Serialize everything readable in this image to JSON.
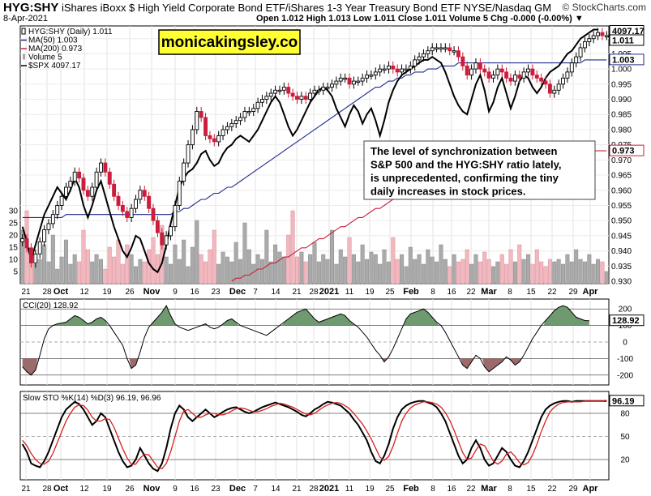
{
  "header": {
    "symbol": "HYG:SHY",
    "description": "iShares iBoxx $ High Yield Corporate Bond ETF/iShares 1-3 Year Treasury Bond ETF NYSE/Nasdaq GM",
    "date": "8-Apr-2021",
    "stats": "Open 1.012  High 1.013  Low 1.011  Close 1.011  Volume 5  Chg -0.000 (-0.00%) ▼",
    "brand": "© StockCharts.com",
    "watermark": "monicakingsley.co"
  },
  "annotation": "The level of synchronization between S&P 500 and the HYG:SHY ratio lately, is unprecedented, confirming the tiny daily increases in stock prices.",
  "colors": {
    "up": "#000000",
    "down": "#cc1d3c",
    "ma50": "#1e2a8a",
    "ma200": "#cc1d3c",
    "spx": "#000000",
    "volume_up": "#aaaaaa",
    "volume_down": "#f2b8bf",
    "cci_pos": "#6f9a6f",
    "cci_neg": "#9c6a6a",
    "sto_d": "#d42020"
  },
  "chart_data": [
    {
      "type": "candlestick",
      "legend": [
        {
          "label": "HYG:SHY (Daily) 1.011",
          "color": "#000000"
        },
        {
          "label": "MA(50) 1.003",
          "color": "#1e2a8a"
        },
        {
          "label": "MA(200) 0.973",
          "color": "#cc1d3c"
        },
        {
          "label": "Volume 5",
          "color": "#aaaaaa"
        },
        {
          "label": "$SPX 4097.17",
          "color": "#000000"
        }
      ],
      "ylim": [
        0.93,
        1.015
      ],
      "y_ticks": [
        "0.930",
        "0.935",
        "0.940",
        "0.945",
        "0.950",
        "0.955",
        "0.960",
        "0.965",
        "0.970",
        "0.975",
        "0.980",
        "0.985",
        "0.990",
        "0.995",
        "1.000",
        "1.005",
        "1.010"
      ],
      "volume_ticks": [
        "5",
        "10",
        "15",
        "20",
        "25",
        "30"
      ],
      "x_labels": [
        "21",
        "28",
        "Oct",
        "12",
        "19",
        "26",
        "Nov",
        "9",
        "16",
        "23",
        "Dec",
        "7",
        "14",
        "21",
        "28",
        "2021",
        "11",
        "19",
        "25",
        "Feb",
        "8",
        "16",
        "22",
        "Mar",
        "8",
        "15",
        "22",
        "29",
        "Apr"
      ],
      "last_labels": {
        "spx": "4097.17",
        "price": "1.011",
        "ma50": "1.003",
        "ma200": "0.973"
      },
      "price_close": [
        0.944,
        0.941,
        0.936,
        0.939,
        0.943,
        0.947,
        0.949,
        0.952,
        0.955,
        0.958,
        0.961,
        0.963,
        0.966,
        0.964,
        0.96,
        0.958,
        0.961,
        0.966,
        0.969,
        0.966,
        0.962,
        0.958,
        0.955,
        0.953,
        0.951,
        0.954,
        0.957,
        0.96,
        0.958,
        0.954,
        0.95,
        0.946,
        0.942,
        0.945,
        0.948,
        0.955,
        0.963,
        0.969,
        0.975,
        0.98,
        0.986,
        0.984,
        0.978,
        0.977,
        0.976,
        0.978,
        0.98,
        0.981,
        0.982,
        0.983,
        0.984,
        0.986,
        0.986,
        0.987,
        0.989,
        0.99,
        0.991,
        0.992,
        0.993,
        0.993,
        0.994,
        0.992,
        0.991,
        0.99,
        0.991,
        0.99,
        0.992,
        0.993,
        0.993,
        0.994,
        0.994,
        0.995,
        0.996,
        0.997,
        0.997,
        0.995,
        0.996,
        0.996,
        0.997,
        0.998,
        0.998,
        0.999,
        1.0,
        1.0,
        1.001,
        1.0,
        0.999,
        1.0,
        1.0,
        1.001,
        1.003,
        1.004,
        1.005,
        1.006,
        1.007,
        1.007,
        1.007,
        1.007,
        1.006,
        1.006,
        1.004,
        1.001,
        0.998,
        1.0,
        1.002,
        1.0,
        0.999,
        0.997,
        0.998,
        1.0,
        0.999,
        0.997,
        0.996,
        0.998,
        0.997,
        0.999,
        1.0,
        0.998,
        0.997,
        0.996,
        0.995,
        0.992,
        0.993,
        0.995,
        0.997,
        0.999,
        1.002,
        1.004,
        1.007,
        1.009,
        1.01,
        1.011,
        1.012,
        1.011,
        1.011
      ],
      "ma50": [
        0.951,
        0.951,
        0.951,
        0.951,
        0.951,
        0.951,
        0.951,
        0.951,
        0.951,
        0.951,
        0.952,
        0.952,
        0.952,
        0.952,
        0.952,
        0.952,
        0.952,
        0.952,
        0.952,
        0.952,
        0.952,
        0.952,
        0.952,
        0.952,
        0.952,
        0.952,
        0.952,
        0.952,
        0.952,
        0.952,
        0.952,
        0.952,
        0.952,
        0.952,
        0.952,
        0.953,
        0.953,
        0.954,
        0.954,
        0.955,
        0.956,
        0.957,
        0.957,
        0.958,
        0.959,
        0.959,
        0.96,
        0.961,
        0.961,
        0.962,
        0.963,
        0.964,
        0.965,
        0.966,
        0.967,
        0.968,
        0.969,
        0.97,
        0.971,
        0.972,
        0.973,
        0.974,
        0.975,
        0.976,
        0.977,
        0.978,
        0.979,
        0.98,
        0.981,
        0.982,
        0.983,
        0.984,
        0.985,
        0.986,
        0.987,
        0.988,
        0.989,
        0.99,
        0.991,
        0.992,
        0.993,
        0.994,
        0.994,
        0.995,
        0.996,
        0.996,
        0.997,
        0.997,
        0.998,
        0.998,
        0.999,
        0.999,
        0.999,
        1.0,
        1.0,
        1.0,
        1.001,
        1.001,
        1.001,
        1.001,
        1.002,
        1.002,
        1.002,
        1.002,
        1.002,
        1.002,
        1.002,
        1.002,
        1.002,
        1.002,
        1.002,
        1.002,
        1.002,
        1.002,
        1.002,
        1.002,
        1.002,
        1.002,
        1.002,
        1.002,
        1.002,
        1.002,
        1.002,
        1.002,
        1.002,
        1.002,
        1.002,
        1.002,
        1.002,
        1.003,
        1.003,
        1.003,
        1.003,
        1.003,
        1.003
      ],
      "ma200": [
        null,
        null,
        null,
        null,
        null,
        null,
        null,
        null,
        null,
        null,
        null,
        null,
        null,
        null,
        null,
        null,
        null,
        null,
        null,
        null,
        null,
        null,
        null,
        null,
        null,
        null,
        null,
        null,
        null,
        null,
        null,
        null,
        null,
        null,
        null,
        null,
        null,
        null,
        null,
        null,
        null,
        null,
        null,
        null,
        null,
        null,
        null,
        null,
        0.93,
        0.931,
        0.931,
        0.932,
        0.932,
        0.933,
        0.934,
        0.934,
        0.935,
        0.936,
        0.936,
        0.937,
        0.938,
        0.938,
        0.939,
        0.94,
        0.941,
        0.941,
        0.942,
        0.943,
        0.944,
        0.944,
        0.945,
        0.946,
        0.947,
        0.948,
        0.948,
        0.949,
        0.95,
        0.951,
        0.951,
        0.952,
        0.953,
        0.954,
        0.954,
        0.955,
        0.956,
        0.957,
        0.957,
        0.958,
        0.959,
        0.96,
        0.96,
        0.961,
        0.962,
        0.962,
        0.963,
        0.964,
        0.965,
        0.965,
        0.966,
        0.966,
        0.967,
        0.968,
        0.968,
        0.969,
        0.969,
        0.97,
        0.97,
        0.971,
        0.971,
        0.972,
        0.972,
        0.972,
        0.973,
        0.973,
        0.973,
        0.973,
        0.973,
        0.973,
        0.973,
        0.973,
        0.973,
        0.973,
        0.973,
        0.973,
        0.973,
        0.973,
        0.973,
        0.973,
        0.973,
        0.973,
        0.973,
        0.973,
        0.973,
        0.973,
        0.973
      ],
      "spx": [
        0.948,
        0.943,
        0.937,
        0.942,
        0.947,
        0.952,
        0.955,
        0.958,
        0.961,
        0.959,
        0.957,
        0.96,
        0.964,
        0.961,
        0.955,
        0.951,
        0.955,
        0.96,
        0.963,
        0.958,
        0.953,
        0.948,
        0.944,
        0.94,
        0.938,
        0.941,
        0.945,
        0.944,
        0.94,
        0.936,
        0.934,
        0.933,
        0.936,
        0.942,
        0.949,
        0.955,
        0.961,
        0.964,
        0.966,
        0.967,
        0.969,
        0.972,
        0.973,
        0.97,
        0.968,
        0.969,
        0.972,
        0.974,
        0.975,
        0.977,
        0.978,
        0.977,
        0.976,
        0.978,
        0.98,
        0.983,
        0.986,
        0.989,
        0.991,
        0.989,
        0.985,
        0.981,
        0.978,
        0.98,
        0.983,
        0.986,
        0.989,
        0.991,
        0.993,
        0.994,
        0.993,
        0.991,
        0.987,
        0.984,
        0.981,
        0.985,
        0.988,
        0.986,
        0.982,
        0.985,
        0.987,
        0.983,
        0.978,
        0.983,
        0.989,
        0.993,
        0.996,
        0.998,
        0.999,
        1.0,
        1.001,
        1.002,
        1.003,
        1.003,
        1.004,
        1.003,
        1.002,
        0.999,
        0.995,
        0.991,
        0.988,
        0.986,
        0.985,
        0.99,
        0.995,
        0.998,
        0.993,
        0.986,
        0.989,
        0.994,
        0.997,
        0.992,
        0.987,
        0.991,
        0.996,
        0.998,
        0.997,
        0.994,
        0.992,
        0.994,
        0.997,
        0.999,
        1.0,
        1.001,
        1.003,
        1.005,
        1.006,
        1.008,
        1.01,
        1.011,
        1.012,
        1.013,
        1.013
      ],
      "volume": [
        22,
        30,
        12,
        8,
        10,
        16,
        9,
        20,
        6,
        11,
        18,
        8,
        12,
        9,
        22,
        14,
        9,
        12,
        10,
        6,
        15,
        11,
        18,
        8,
        16,
        12,
        7,
        10,
        9,
        14,
        19,
        12,
        24,
        11,
        8,
        16,
        10,
        18,
        7,
        15,
        26,
        12,
        9,
        14,
        22,
        8,
        13,
        11,
        9,
        17,
        10,
        25,
        14,
        8,
        12,
        10,
        22,
        9,
        16,
        13,
        11,
        20,
        30,
        11,
        13,
        9,
        12,
        17,
        9,
        12,
        10,
        22,
        8,
        14,
        11,
        19,
        12,
        9,
        16,
        10,
        13,
        12,
        8,
        14,
        9,
        19,
        10,
        12,
        7,
        15,
        10,
        12,
        8,
        14,
        11,
        9,
        16,
        10,
        7,
        12,
        9,
        10,
        14,
        8,
        12,
        9,
        13,
        10,
        7,
        9,
        12,
        8,
        14,
        9,
        16,
        10,
        12,
        8,
        14,
        9,
        7,
        10,
        9,
        10,
        8,
        12,
        9,
        14,
        10,
        9,
        12,
        8,
        10,
        9,
        5
      ]
    },
    {
      "type": "line",
      "name": "CCI(20) 128.92",
      "ylim": [
        -260,
        260
      ],
      "y_ticks": [
        "200",
        "100",
        "0",
        "-100",
        "-200"
      ],
      "last_label": "128.92",
      "values": [
        -150,
        -180,
        -200,
        -170,
        -80,
        20,
        80,
        100,
        110,
        115,
        120,
        140,
        160,
        150,
        130,
        110,
        120,
        140,
        150,
        130,
        100,
        60,
        20,
        -20,
        -100,
        -160,
        -140,
        -60,
        30,
        90,
        120,
        150,
        180,
        220,
        160,
        110,
        90,
        80,
        70,
        80,
        90,
        100,
        110,
        90,
        80,
        90,
        110,
        130,
        140,
        120,
        100,
        90,
        80,
        70,
        60,
        50,
        40,
        60,
        80,
        100,
        120,
        140,
        160,
        180,
        190,
        200,
        170,
        140,
        120,
        130,
        140,
        150,
        160,
        170,
        160,
        130,
        110,
        90,
        60,
        30,
        -10,
        -50,
        -80,
        -120,
        -90,
        -40,
        20,
        80,
        140,
        170,
        180,
        190,
        200,
        180,
        150,
        120,
        100,
        60,
        10,
        -40,
        -90,
        -140,
        -160,
        -120,
        -80,
        -100,
        -150,
        -180,
        -160,
        -140,
        -120,
        -90,
        -110,
        -140,
        -120,
        -80,
        -30,
        20,
        60,
        100,
        130,
        160,
        190,
        210,
        220,
        210,
        180,
        150,
        140,
        130,
        129
      ],
      "color": "#000000"
    },
    {
      "type": "line",
      "name": "Slow STO %K(14) %D(3) 96.19, 96.96",
      "ylim": [
        0,
        100
      ],
      "y_ticks": [
        "80",
        "50",
        "20"
      ],
      "last_label": "96.19",
      "series": [
        {
          "name": "%K",
          "color": "#000000",
          "values": [
            40,
            30,
            15,
            12,
            10,
            18,
            30,
            45,
            60,
            75,
            85,
            90,
            95,
            92,
            85,
            75,
            65,
            70,
            80,
            75,
            60,
            45,
            30,
            18,
            10,
            12,
            20,
            35,
            25,
            15,
            8,
            5,
            15,
            35,
            60,
            80,
            90,
            85,
            75,
            70,
            75,
            80,
            85,
            80,
            75,
            78,
            82,
            85,
            87,
            88,
            85,
            82,
            80,
            82,
            85,
            88,
            90,
            92,
            94,
            92,
            90,
            88,
            85,
            82,
            78,
            76,
            80,
            85,
            88,
            92,
            95,
            94,
            92,
            90,
            85,
            80,
            72,
            65,
            55,
            45,
            30,
            18,
            15,
            25,
            40,
            60,
            75,
            85,
            90,
            93,
            95,
            96,
            96,
            94,
            92,
            88,
            80,
            70,
            55,
            40,
            25,
            15,
            20,
            35,
            45,
            35,
            20,
            12,
            15,
            25,
            35,
            30,
            20,
            12,
            10,
            18,
            30,
            45,
            60,
            75,
            85,
            90,
            93,
            95,
            96,
            96,
            95,
            96,
            96,
            96,
            96,
            96,
            96,
            96,
            96
          ]
        },
        {
          "name": "%D",
          "color": "#d42020",
          "values": [
            45,
            38,
            28,
            20,
            15,
            14,
            18,
            28,
            42,
            56,
            70,
            80,
            88,
            91,
            90,
            84,
            75,
            70,
            70,
            73,
            72,
            62,
            48,
            34,
            22,
            14,
            14,
            22,
            27,
            26,
            18,
            10,
            8,
            15,
            30,
            50,
            70,
            83,
            85,
            80,
            75,
            75,
            78,
            80,
            80,
            78,
            78,
            80,
            83,
            86,
            87,
            86,
            84,
            82,
            82,
            84,
            86,
            89,
            91,
            93,
            92,
            90,
            88,
            85,
            82,
            79,
            78,
            80,
            84,
            88,
            91,
            93,
            94,
            93,
            90,
            86,
            80,
            73,
            66,
            57,
            47,
            35,
            23,
            19,
            24,
            37,
            54,
            70,
            80,
            87,
            91,
            93,
            95,
            95,
            94,
            92,
            88,
            81,
            71,
            58,
            43,
            29,
            20,
            22,
            32,
            40,
            38,
            28,
            18,
            14,
            18,
            27,
            30,
            24,
            16,
            13,
            16,
            26,
            40,
            56,
            70,
            82,
            88,
            92,
            94,
            95,
            95,
            95,
            95,
            96,
            96,
            96,
            96,
            96,
            97
          ]
        }
      ]
    }
  ]
}
